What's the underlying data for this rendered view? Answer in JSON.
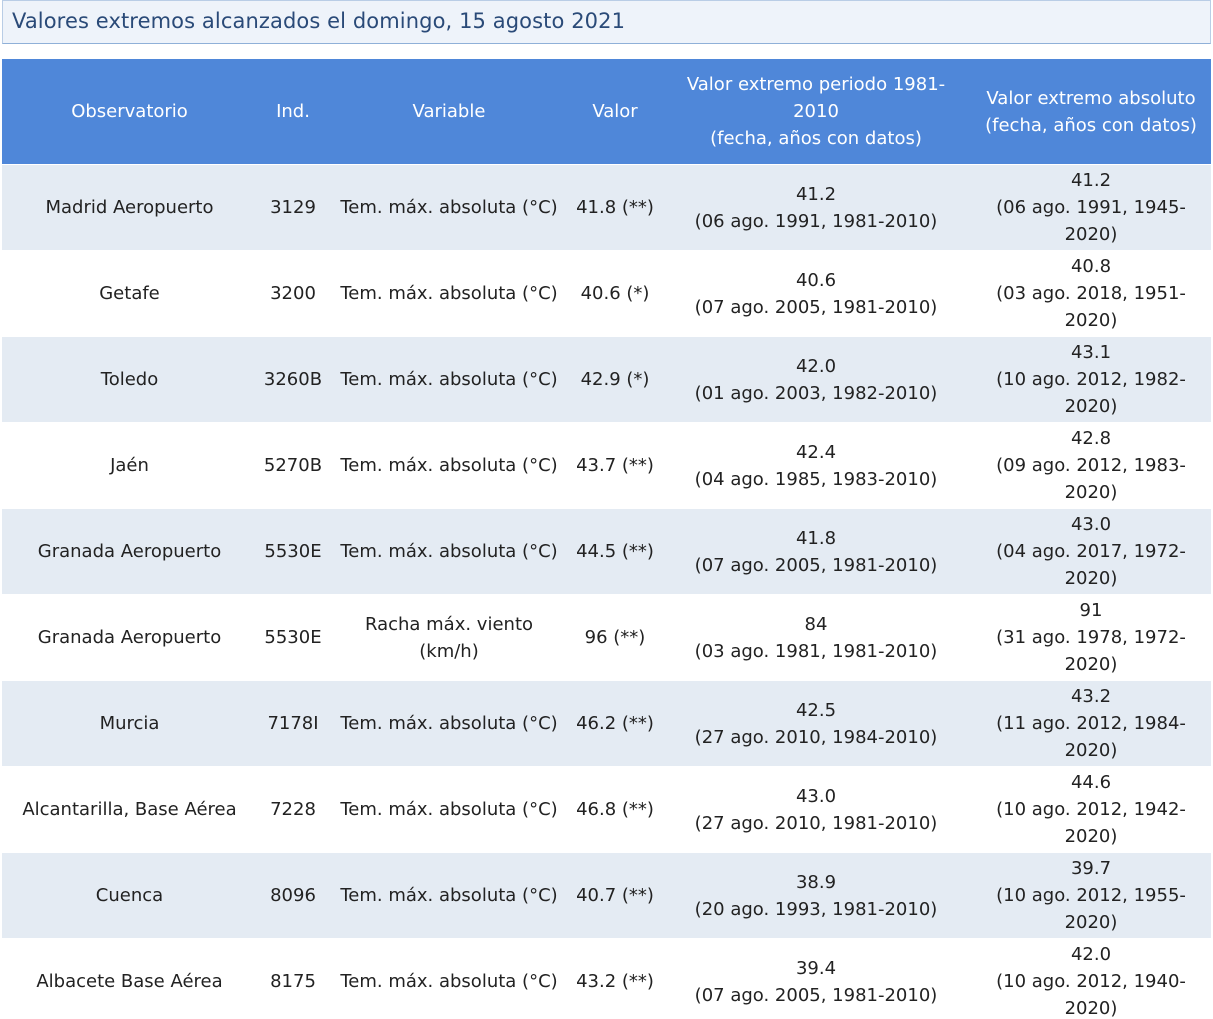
{
  "title": "Valores extremos alcanzados el domingo, 15 agosto 2021",
  "columns": {
    "observatorio": "Observatorio",
    "ind": "Ind.",
    "variable": "Variable",
    "valor": "Valor",
    "periodo_line1": "Valor extremo periodo 1981-2010",
    "periodo_line2": "(fecha, años con datos)",
    "absoluto_line1": "Valor extremo absoluto",
    "absoluto_line2": "(fecha, años con datos)"
  },
  "rows": [
    {
      "observatorio": "Madrid Aeropuerto",
      "ind": "3129",
      "variable": "Tem. máx. absoluta (°C)",
      "valor": "41.8 (**)",
      "periodo_valor": "41.2",
      "periodo_fecha": "(06 ago. 1991, 1981-2010)",
      "absoluto_valor": "41.2",
      "absoluto_fecha": "(06 ago. 1991, 1945-2020)"
    },
    {
      "observatorio": "Getafe",
      "ind": "3200",
      "variable": "Tem. máx. absoluta (°C)",
      "valor": "40.6 (*)",
      "periodo_valor": "40.6",
      "periodo_fecha": "(07 ago. 2005, 1981-2010)",
      "absoluto_valor": "40.8",
      "absoluto_fecha": "(03 ago. 2018, 1951-2020)"
    },
    {
      "observatorio": "Toledo",
      "ind": "3260B",
      "variable": "Tem. máx. absoluta (°C)",
      "valor": "42.9 (*)",
      "periodo_valor": "42.0",
      "periodo_fecha": "(01 ago. 2003, 1982-2010)",
      "absoluto_valor": "43.1",
      "absoluto_fecha": "(10 ago. 2012, 1982-2020)"
    },
    {
      "observatorio": "Jaén",
      "ind": "5270B",
      "variable": "Tem. máx. absoluta (°C)",
      "valor": "43.7 (**)",
      "periodo_valor": "42.4",
      "periodo_fecha": "(04 ago. 1985, 1983-2010)",
      "absoluto_valor": "42.8",
      "absoluto_fecha": "(09 ago. 2012, 1983-2020)"
    },
    {
      "observatorio": "Granada Aeropuerto",
      "ind": "5530E",
      "variable": "Tem. máx. absoluta (°C)",
      "valor": "44.5 (**)",
      "periodo_valor": "41.8",
      "periodo_fecha": "(07 ago. 2005, 1981-2010)",
      "absoluto_valor": "43.0",
      "absoluto_fecha": "(04 ago. 2017, 1972-2020)"
    },
    {
      "observatorio": "Granada Aeropuerto",
      "ind": "5530E",
      "variable": "Racha máx. viento (km/h)",
      "valor": "96 (**)",
      "periodo_valor": "84",
      "periodo_fecha": "(03 ago. 1981, 1981-2010)",
      "absoluto_valor": "91",
      "absoluto_fecha": "(31 ago. 1978, 1972-2020)"
    },
    {
      "observatorio": "Murcia",
      "ind": "7178I",
      "variable": "Tem. máx. absoluta (°C)",
      "valor": "46.2 (**)",
      "periodo_valor": "42.5",
      "periodo_fecha": "(27 ago. 2010, 1984-2010)",
      "absoluto_valor": "43.2",
      "absoluto_fecha": "(11 ago. 2012, 1984-2020)"
    },
    {
      "observatorio": "Alcantarilla, Base Aérea",
      "ind": "7228",
      "variable": "Tem. máx. absoluta (°C)",
      "valor": "46.8 (**)",
      "periodo_valor": "43.0",
      "periodo_fecha": "(27 ago. 2010, 1981-2010)",
      "absoluto_valor": "44.6",
      "absoluto_fecha": "(10 ago. 2012, 1942-2020)"
    },
    {
      "observatorio": "Cuenca",
      "ind": "8096",
      "variable": "Tem. máx. absoluta (°C)",
      "valor": "40.7 (**)",
      "periodo_valor": "38.9",
      "periodo_fecha": "(20 ago. 1993, 1981-2010)",
      "absoluto_valor": "39.7",
      "absoluto_fecha": "(10 ago. 2012, 1955-2020)"
    },
    {
      "observatorio": "Albacete Base Aérea",
      "ind": "8175",
      "variable": "Tem. máx. absoluta (°C)",
      "valor": "43.2 (**)",
      "periodo_valor": "39.4",
      "periodo_fecha": "(07 ago. 2005, 1981-2010)",
      "absoluto_valor": "42.0",
      "absoluto_fecha": "(10 ago. 2012, 1940-2020)"
    }
  ]
}
